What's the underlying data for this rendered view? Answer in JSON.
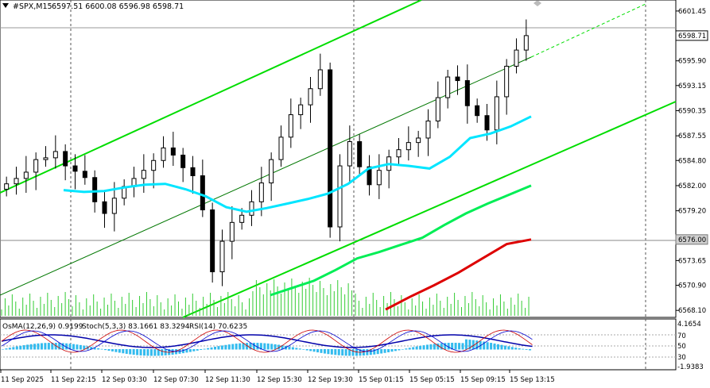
{
  "header": {
    "arrow_icon": "triangle-down-icon",
    "symbol": "#SPX,M15",
    "ohlc": "6597.51 6600.08 6596.98 6598.71"
  },
  "indicator_header": {
    "osma": "OsMA(12,26,9) 0.9199",
    "stoch": "Stoch(5,3,3) 83.1661 83.3294",
    "rsi": "RSI(14) 70.6235"
  },
  "colors": {
    "channel": "#00dd00",
    "ema_fast": "#00e5ff",
    "ema_slow": "#00ee55",
    "ema_long": "#dd0000",
    "volume": "#33cc33",
    "osma_hist": "#33bbee",
    "macd_line": "#0000aa",
    "stoch_main": "#cc0000",
    "stoch_signal": "#0000cc"
  },
  "chart_data": {
    "type": "candlestick",
    "symbol": "#SPX",
    "timeframe": "M15",
    "last_price": 6598.71,
    "highlighted_level": 6576.0,
    "ylim": [
      6567.5,
      6602.5
    ],
    "y_ticks": [
      "6601.45",
      "6598.71",
      "6595.90",
      "6593.15",
      "6590.35",
      "6587.55",
      "6584.80",
      "6582.00",
      "6579.20",
      "6576.00",
      "6573.65",
      "6570.90",
      "6568.10"
    ],
    "x_ticks": [
      "11 Sep 2025",
      "11 Sep 22:15",
      "12 Sep 03:30",
      "12 Sep 07:30",
      "12 Sep 11:30",
      "12 Sep 15:30",
      "12 Sep 19:30",
      "15 Sep 01:15",
      "15 Sep 05:15",
      "15 Sep 09:15",
      "15 Sep 13:15"
    ],
    "close": [
      6582.2,
      6582.8,
      6583.5,
      6584.9,
      6585.1,
      6585.8,
      6584.2,
      6583.6,
      6582.9,
      6580.2,
      6578.9,
      6580.6,
      6581.9,
      6582.8,
      6583.7,
      6584.8,
      6586.2,
      6585.4,
      6584.0,
      6583.1,
      6579.3,
      6572.4,
      6575.8,
      6577.9,
      6578.7,
      6580.2,
      6582.3,
      6584.9,
      6587.4,
      6589.9,
      6591.0,
      6592.8,
      6594.9,
      6577.4,
      6584.2,
      6586.9,
      6584.1,
      6582.1,
      6583.7,
      6585.2,
      6586.0,
      6586.8,
      6587.3,
      6589.2,
      6591.8,
      6594.1,
      6593.7,
      6590.9,
      6589.8,
      6588.2,
      6591.9,
      6595.3,
      6597.1,
      6598.71
    ],
    "series": [
      {
        "name": "",
        "values": [
          6581.5,
          6581.3,
          6581.4,
          6581.8,
          6582.1,
          6582.2,
          6581.6,
          6580.8,
          6579.6,
          6579.1,
          6579.5,
          6580.0,
          6580.5,
          6581.1,
          6582.2,
          6583.9,
          6584.4,
          6584.2,
          6583.9,
          6585.2,
          6587.3,
          6587.8,
          6588.6,
          6589.7
        ]
      },
      {
        "name": "",
        "values": [
          6569.8,
          6570.6,
          6571.4,
          6572.6,
          6573.9,
          6574.6,
          6575.4,
          6576.2,
          6577.6,
          6578.9,
          6580.0,
          6581.0,
          6582.0
        ]
      },
      {
        "name": "",
        "values": [
          6568.2,
          6569.6,
          6570.9,
          6572.3,
          6573.9,
          6575.5,
          6576.0
        ]
      }
    ],
    "indicators": {
      "osma": {
        "value": 0.9199,
        "range": [
          -1.9383,
          4.1654
        ]
      },
      "stoch": {
        "main": 83.1661,
        "signal": 83.3294,
        "levels": [
          70,
          50,
          30
        ]
      },
      "rsi": {
        "value": 70.6235
      }
    },
    "indicator_axis_labels": [
      "4.1654",
      "70",
      "50",
      "30",
      "-1.9383"
    ]
  }
}
